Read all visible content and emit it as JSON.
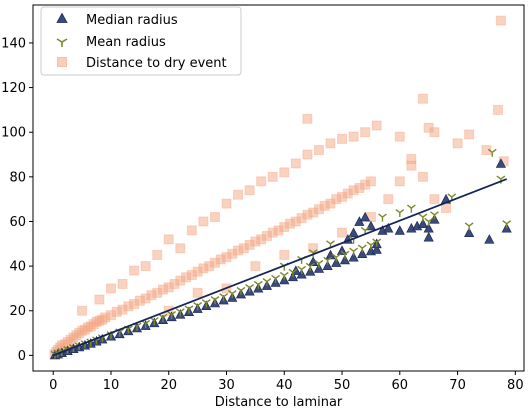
{
  "chart_data": {
    "type": "scatter",
    "title": "",
    "xlabel": "Distance to laminar",
    "ylabel": "",
    "xlim": [
      -3.5,
      81.5
    ],
    "ylim": [
      -7,
      157
    ],
    "xticks": [
      0,
      10,
      20,
      30,
      40,
      50,
      60,
      70,
      80
    ],
    "yticks": [
      0,
      20,
      40,
      60,
      80,
      100,
      120,
      140
    ],
    "grid": false,
    "legend_position": "top-left",
    "series": [
      {
        "name": "Median radius",
        "marker": "triangle",
        "color": "#3a4a7a",
        "points": [
          [
            0.3,
            0.2
          ],
          [
            0.8,
            0.6
          ],
          [
            1.5,
            1.2
          ],
          [
            2.5,
            2.1
          ],
          [
            3.5,
            3.0
          ],
          [
            4.5,
            3.8
          ],
          [
            5.5,
            4.6
          ],
          [
            6.5,
            5.4
          ],
          [
            7.5,
            6.4
          ],
          [
            8.5,
            7.3
          ],
          [
            10,
            8.6
          ],
          [
            11.5,
            9.7
          ],
          [
            13,
            11
          ],
          [
            14.5,
            12.3
          ],
          [
            16,
            13.4
          ],
          [
            17.5,
            14.6
          ],
          [
            19,
            16
          ],
          [
            20.5,
            17.3
          ],
          [
            22,
            18.4
          ],
          [
            23.5,
            19.6
          ],
          [
            25,
            21
          ],
          [
            26.5,
            22.3
          ],
          [
            28,
            23.5
          ],
          [
            29.5,
            24.8
          ],
          [
            31,
            26
          ],
          [
            32.5,
            27.5
          ],
          [
            34,
            28.8
          ],
          [
            35.5,
            30.1
          ],
          [
            37,
            31.3
          ],
          [
            38.5,
            32.7
          ],
          [
            40,
            33.8
          ],
          [
            41.5,
            35.2
          ],
          [
            43,
            36.4
          ],
          [
            44.5,
            37.7
          ],
          [
            46,
            39
          ],
          [
            47.5,
            40.2
          ],
          [
            49,
            41.6
          ],
          [
            50.5,
            42.8
          ],
          [
            52,
            44
          ],
          [
            53.5,
            45.6
          ],
          [
            55,
            46.8
          ],
          [
            56,
            47.5
          ],
          [
            42,
            38
          ],
          [
            45,
            42
          ],
          [
            48,
            45
          ],
          [
            50,
            47
          ],
          [
            51,
            52
          ],
          [
            52,
            55
          ],
          [
            53,
            60
          ],
          [
            54,
            62
          ],
          [
            55,
            58
          ],
          [
            56,
            50
          ],
          [
            57,
            56
          ],
          [
            58,
            57
          ],
          [
            60,
            56
          ],
          [
            62,
            57
          ],
          [
            63,
            58
          ],
          [
            64,
            59
          ],
          [
            65,
            57
          ],
          [
            65,
            53
          ],
          [
            66,
            61
          ],
          [
            68,
            70
          ],
          [
            72,
            55
          ],
          [
            75.5,
            52
          ],
          [
            77.5,
            86
          ],
          [
            78.5,
            57
          ]
        ]
      },
      {
        "name": "Mean radius",
        "marker": "tri_down",
        "color": "#7a8a2a",
        "points": [
          [
            0.3,
            0.5
          ],
          [
            0.8,
            1.0
          ],
          [
            1.5,
            1.7
          ],
          [
            2.5,
            2.6
          ],
          [
            3.5,
            3.5
          ],
          [
            4.5,
            4.3
          ],
          [
            5.5,
            5.2
          ],
          [
            6.5,
            6.0
          ],
          [
            7.5,
            6.9
          ],
          [
            8.5,
            7.9
          ],
          [
            10,
            9.3
          ],
          [
            11.5,
            10.5
          ],
          [
            13,
            11.8
          ],
          [
            14.5,
            13.1
          ],
          [
            16,
            14.3
          ],
          [
            17.5,
            15.6
          ],
          [
            19,
            17
          ],
          [
            20.5,
            18.3
          ],
          [
            22,
            19.5
          ],
          [
            23.5,
            20.8
          ],
          [
            25,
            22.3
          ],
          [
            26.5,
            23.6
          ],
          [
            28,
            25
          ],
          [
            29.5,
            26.3
          ],
          [
            31,
            27.7
          ],
          [
            32.5,
            29.1
          ],
          [
            34,
            30.4
          ],
          [
            35.5,
            31.8
          ],
          [
            37,
            33.1
          ],
          [
            38.5,
            34.5
          ],
          [
            40,
            35.8
          ],
          [
            41.5,
            37.2
          ],
          [
            43,
            38.5
          ],
          [
            44.5,
            39.9
          ],
          [
            46,
            41.2
          ],
          [
            47.5,
            42.6
          ],
          [
            49,
            44
          ],
          [
            50.5,
            45.3
          ],
          [
            52,
            46.7
          ],
          [
            53.5,
            48.1
          ],
          [
            55,
            49.5
          ],
          [
            56,
            50.8
          ],
          [
            40,
            40
          ],
          [
            43,
            43
          ],
          [
            45,
            46
          ],
          [
            48,
            50
          ],
          [
            52,
            52
          ],
          [
            54,
            56
          ],
          [
            57,
            62
          ],
          [
            60,
            64
          ],
          [
            62,
            66
          ],
          [
            64,
            62
          ],
          [
            65,
            60
          ],
          [
            66,
            63
          ],
          [
            69,
            71
          ],
          [
            72,
            58
          ],
          [
            76,
            91
          ],
          [
            77.5,
            79
          ],
          [
            78.5,
            59
          ]
        ]
      },
      {
        "name": "Distance to dry event",
        "marker": "square",
        "color": "#f4a582",
        "points": [
          [
            0.2,
            0.5
          ],
          [
            0.5,
            1.5
          ],
          [
            0.8,
            2.5
          ],
          [
            1.2,
            3.5
          ],
          [
            1.5,
            4.5
          ],
          [
            2,
            5
          ],
          [
            2.5,
            6
          ],
          [
            3,
            7
          ],
          [
            3.5,
            8
          ],
          [
            4,
            9
          ],
          [
            4.5,
            10
          ],
          [
            5,
            11
          ],
          [
            5.5,
            11.5
          ],
          [
            6,
            12.5
          ],
          [
            6.5,
            13
          ],
          [
            7,
            14
          ],
          [
            7.5,
            15
          ],
          [
            8,
            15.5
          ],
          [
            8.5,
            16
          ],
          [
            9,
            17
          ],
          [
            10,
            18
          ],
          [
            11,
            19.5
          ],
          [
            12,
            20.5
          ],
          [
            13,
            22
          ],
          [
            14,
            23
          ],
          [
            15,
            24.5
          ],
          [
            16,
            25.5
          ],
          [
            17,
            27
          ],
          [
            18,
            28
          ],
          [
            19,
            29.5
          ],
          [
            20,
            30.5
          ],
          [
            21,
            32
          ],
          [
            22,
            33.5
          ],
          [
            23,
            35
          ],
          [
            24,
            36
          ],
          [
            25,
            37.5
          ],
          [
            26,
            39
          ],
          [
            27,
            40
          ],
          [
            28,
            41.5
          ],
          [
            29,
            43
          ],
          [
            30,
            44
          ],
          [
            31,
            45.5
          ],
          [
            32,
            47
          ],
          [
            33,
            48
          ],
          [
            34,
            49.5
          ],
          [
            35,
            51
          ],
          [
            36,
            52
          ],
          [
            37,
            53.5
          ],
          [
            38,
            55
          ],
          [
            39,
            56
          ],
          [
            40,
            57.5
          ],
          [
            41,
            59
          ],
          [
            42,
            60
          ],
          [
            43,
            61.5
          ],
          [
            44,
            63
          ],
          [
            45,
            64
          ],
          [
            46,
            65.5
          ],
          [
            47,
            67
          ],
          [
            48,
            68
          ],
          [
            49,
            70
          ],
          [
            50,
            71
          ],
          [
            51,
            72.5
          ],
          [
            52,
            74
          ],
          [
            53,
            75
          ],
          [
            54,
            76.5
          ],
          [
            55,
            78
          ],
          [
            5,
            20
          ],
          [
            8,
            25
          ],
          [
            10,
            30
          ],
          [
            12,
            32
          ],
          [
            14,
            38
          ],
          [
            16,
            40
          ],
          [
            18,
            45
          ],
          [
            20,
            52
          ],
          [
            22,
            48
          ],
          [
            24,
            56
          ],
          [
            26,
            60
          ],
          [
            28,
            62
          ],
          [
            30,
            68
          ],
          [
            32,
            72
          ],
          [
            34,
            74
          ],
          [
            36,
            78
          ],
          [
            38,
            80
          ],
          [
            40,
            82
          ],
          [
            42,
            86
          ],
          [
            44,
            90
          ],
          [
            46,
            92
          ],
          [
            48,
            95
          ],
          [
            50,
            97
          ],
          [
            52,
            98
          ],
          [
            54,
            100
          ],
          [
            56,
            103
          ],
          [
            60,
            98
          ],
          [
            62,
            88
          ],
          [
            64,
            115
          ],
          [
            65,
            102
          ],
          [
            66,
            100
          ],
          [
            70,
            95
          ],
          [
            72,
            99
          ],
          [
            75,
            92
          ],
          [
            77,
            110
          ],
          [
            77.5,
            150
          ],
          [
            78,
            87
          ],
          [
            20,
            20
          ],
          [
            25,
            28
          ],
          [
            30,
            30
          ],
          [
            35,
            40
          ],
          [
            40,
            45
          ],
          [
            45,
            48
          ],
          [
            50,
            55
          ],
          [
            55,
            62
          ],
          [
            58,
            70
          ],
          [
            60,
            78
          ],
          [
            62,
            85
          ],
          [
            64,
            80
          ],
          [
            66,
            70
          ],
          [
            68,
            66
          ],
          [
            44,
            106
          ]
        ]
      }
    ],
    "fit_line": {
      "color": "#14245a",
      "x": [
        0,
        78.5
      ],
      "y": [
        0,
        79
      ]
    }
  },
  "legend": {
    "items": [
      {
        "label": "Median radius"
      },
      {
        "label": "Mean radius"
      },
      {
        "label": "Distance to dry event"
      }
    ]
  }
}
